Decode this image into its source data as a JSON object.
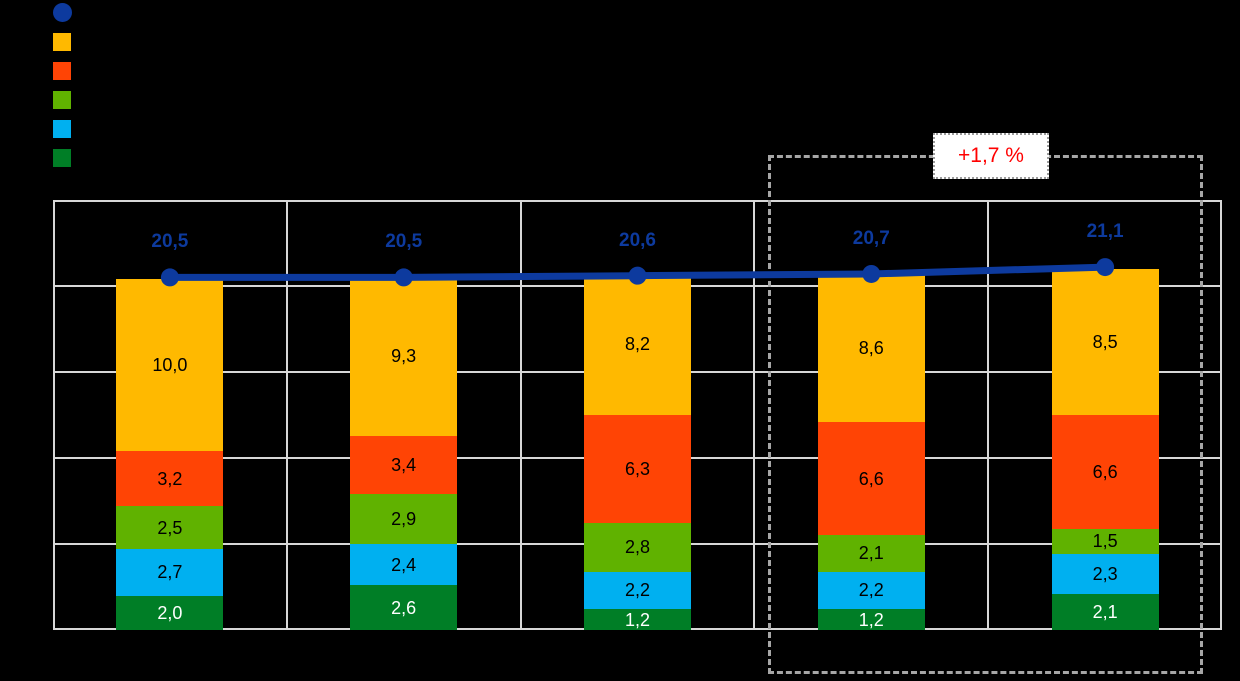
{
  "page": {
    "background": "#000000"
  },
  "legend": {
    "position": "top-left",
    "items": [
      {
        "swatch": "circle",
        "color": "#0D3A9E",
        "label": ""
      },
      {
        "swatch": "square",
        "color": "#FFB900",
        "label": ""
      },
      {
        "swatch": "square",
        "color": "#FF4405",
        "label": ""
      },
      {
        "swatch": "square",
        "color": "#60B200",
        "label": ""
      },
      {
        "swatch": "square",
        "color": "#00B0F0",
        "label": ""
      },
      {
        "swatch": "square",
        "color": "#007E26",
        "label": ""
      }
    ]
  },
  "highlight": {
    "label": "+1,7 %",
    "text_color": "#FF0000",
    "box_background": "#FFFFFF"
  },
  "chart_data": {
    "type": "bar",
    "subtype": "stacked-columns-with-total-line-overlay",
    "title": "",
    "xlabel": "",
    "ylabel": "",
    "categories": [
      "",
      "",
      "",
      "",
      ""
    ],
    "series": [
      {
        "name": "segment-amber",
        "color": "#FFB900",
        "label_color": "#000000",
        "values": [
          10.0,
          9.3,
          8.2,
          8.6,
          8.5
        ]
      },
      {
        "name": "segment-orange-red",
        "color": "#FF4405",
        "label_color": "#000000",
        "values": [
          3.2,
          3.4,
          6.3,
          6.6,
          6.6
        ]
      },
      {
        "name": "segment-green",
        "color": "#60B200",
        "label_color": "#000000",
        "values": [
          2.5,
          2.9,
          2.8,
          2.1,
          1.5
        ]
      },
      {
        "name": "segment-light-blue",
        "color": "#00B0F0",
        "label_color": "#000000",
        "values": [
          2.7,
          2.4,
          2.2,
          2.2,
          2.3
        ]
      },
      {
        "name": "segment-dark-green",
        "color": "#007E26",
        "label_color": "#FFFFFF",
        "values": [
          2.0,
          2.6,
          1.2,
          1.2,
          2.1
        ]
      }
    ],
    "series_stack_order": "first series on top of stack",
    "line_series": {
      "name": "total-line",
      "color": "#0D3A9E",
      "values": [
        20.5,
        20.5,
        20.6,
        20.7,
        21.1
      ],
      "labels": [
        "20,5",
        "20,5",
        "20,6",
        "20,7",
        "21,1"
      ]
    },
    "ylim": [
      0,
      25
    ],
    "ytick_step": 5,
    "grid": "on",
    "number_format": "comma-decimal",
    "legend_position": "top-left"
  }
}
